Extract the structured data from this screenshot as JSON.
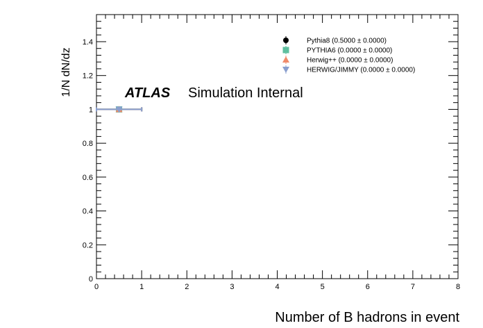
{
  "chart_data": {
    "type": "scatter",
    "title": "",
    "xlabel": "Number of B hadrons in event",
    "ylabel": "1/N dN/dz",
    "xlim": [
      0,
      8
    ],
    "ylim": [
      0,
      1.56
    ],
    "x_ticks": [
      0,
      1,
      2,
      3,
      4,
      5,
      6,
      7,
      8
    ],
    "x_tick_labels": [
      "0",
      "1",
      "2",
      "3",
      "4",
      "5",
      "6",
      "7",
      "8"
    ],
    "y_ticks": [
      0,
      0.2,
      0.4,
      0.6,
      0.8,
      1.0,
      1.2,
      1.4
    ],
    "y_tick_labels": [
      "0",
      "0.2",
      "0.4",
      "0.6",
      "0.8",
      "1",
      "1.2",
      "1.4"
    ],
    "grid": false,
    "legend_position": "top-right",
    "annotation": {
      "bold": "ATLAS",
      "text": "Simulation Internal"
    },
    "series": [
      {
        "name": "Pythia8 (0.5000 ± 0.0000)",
        "marker": "circle",
        "color": "#000000",
        "points": [
          {
            "x": 0.5,
            "y": 1.0,
            "xerr": 0.5
          }
        ]
      },
      {
        "name": "PYTHIA6 (0.0000 ± 0.0000)",
        "marker": "square",
        "color": "#5fbf9f",
        "points": [
          {
            "x": 0.5,
            "y": 1.0,
            "xerr": 0.5
          }
        ]
      },
      {
        "name": "Herwig++ (0.0000 ± 0.0000)",
        "marker": "triangle-up",
        "color": "#f08a6a",
        "points": [
          {
            "x": 0.5,
            "y": 1.0,
            "xerr": 0.5
          }
        ]
      },
      {
        "name": "HERWIG/JIMMY (0.0000 ± 0.0000)",
        "marker": "triangle-down",
        "color": "#8a9fcf",
        "points": [
          {
            "x": 0.5,
            "y": 1.0,
            "xerr": 0.5
          }
        ]
      }
    ]
  }
}
